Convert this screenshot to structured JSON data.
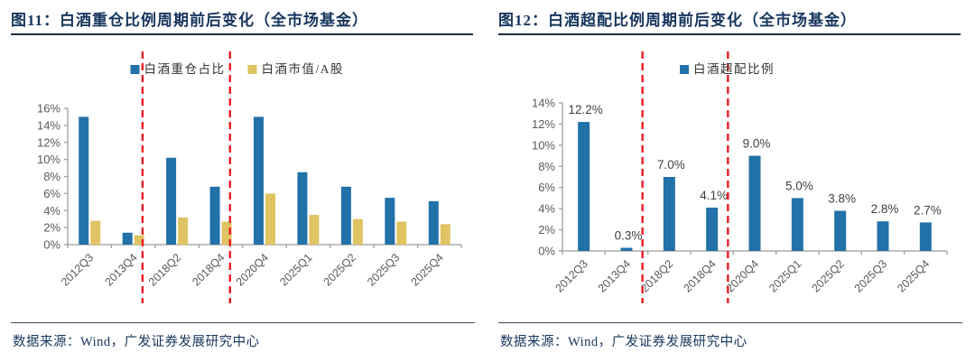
{
  "page": {
    "background": "#FFFFFF"
  },
  "colors": {
    "bar_blue": "#2271A8",
    "bar_yellow": "#E0C464",
    "dashed_red": "#EC1C24",
    "axis_line_gray": "#9E9E9E",
    "tick_label_gray": "#595959",
    "value_label_dark": "#3F3F3F",
    "title_navy": "#17365D"
  },
  "panels": [
    {
      "title": "图11：白酒重仓比例周期前后变化（全市场基金）",
      "source_note": "数据来源：Wind，广发证券发展研究中心",
      "chart_data": {
        "type": "bar",
        "categories": [
          "2012Q3",
          "2013Q4",
          "2018Q2",
          "2018Q4",
          "2020Q4",
          "2025Q1",
          "2025Q2",
          "2025Q3",
          "2025Q4"
        ],
        "series": [
          {
            "name": "白酒重仓占比",
            "color": "#2271A8",
            "values": [
              15.0,
              1.4,
              10.2,
              6.8,
              15.0,
              8.5,
              6.8,
              5.5,
              5.1
            ]
          },
          {
            "name": "白酒市值/A股",
            "color": "#E0C464",
            "values": [
              2.8,
              1.1,
              3.2,
              2.7,
              6.0,
              3.5,
              3.0,
              2.7,
              2.4
            ]
          }
        ],
        "title": "",
        "xlabel": "",
        "ylabel": "",
        "ylim": [
          0,
          16
        ],
        "ytick_step": 2,
        "ytick_format": "percent",
        "grid": false,
        "legend_position": "top",
        "data_labels": false,
        "annotations": {
          "style": "vertical-dashed-line",
          "color": "#EC1C24",
          "dashed_lines_between": [
            [
              "2013Q4",
              "2018Q2"
            ],
            [
              "2018Q4",
              "2020Q4"
            ]
          ]
        }
      }
    },
    {
      "title": "图12：白酒超配比例周期前后变化（全市场基金）",
      "source_note": "数据来源：Wind，广发证券发展研究中心",
      "chart_data": {
        "type": "bar",
        "categories": [
          "2012Q3",
          "2013Q4",
          "2018Q2",
          "2018Q4",
          "2020Q4",
          "2025Q1",
          "2025Q2",
          "2025Q3",
          "2025Q4"
        ],
        "series": [
          {
            "name": "白酒超配比例",
            "color": "#2271A8",
            "values": [
              12.2,
              0.3,
              7.0,
              4.1,
              9.0,
              5.0,
              3.8,
              2.8,
              2.7
            ]
          }
        ],
        "title": "",
        "xlabel": "",
        "ylabel": "",
        "ylim": [
          0,
          14
        ],
        "ytick_step": 2,
        "ytick_format": "percent",
        "grid": false,
        "legend_position": "top",
        "data_labels": true,
        "data_label_texts": [
          "12.2%",
          "0.3%",
          "7.0%",
          "4.1%",
          "9.0%",
          "5.0%",
          "3.8%",
          "2.8%",
          "2.7%"
        ],
        "annotations": {
          "style": "vertical-dashed-line",
          "color": "#EC1C24",
          "dashed_lines_between": [
            [
              "2013Q4",
              "2018Q2"
            ],
            [
              "2018Q4",
              "2020Q4"
            ]
          ]
        }
      }
    }
  ]
}
